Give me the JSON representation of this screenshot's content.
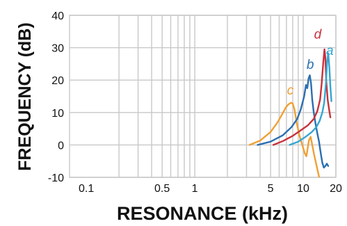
{
  "chart_data": {
    "type": "line",
    "title": "",
    "xlabel": "RESONANCE (kHz)",
    "ylabel": "FREQUENCY (dB)",
    "x_scale": "log",
    "xlim": [
      0.07,
      20
    ],
    "ylim": [
      -10,
      40
    ],
    "grid": true,
    "x_tick_labels": [
      "0.1",
      "0.5",
      "1",
      "5",
      "10",
      "20"
    ],
    "x_tick_values": [
      0.1,
      0.5,
      1,
      5,
      10,
      20
    ],
    "y_tick_labels": [
      "40",
      "30",
      "20",
      "10",
      "0",
      "-10"
    ],
    "y_tick_values": [
      40,
      30,
      20,
      10,
      0,
      -10
    ],
    "x_grid_values": [
      0.2,
      0.3,
      0.4,
      0.5,
      0.6,
      0.7,
      0.8,
      0.9,
      1,
      2,
      3,
      4,
      5,
      6,
      7,
      8,
      9,
      10,
      20
    ],
    "series": [
      {
        "name": "c",
        "color": "#f0a035",
        "x": [
          3.2,
          4.0,
          5.0,
          5.8,
          6.4,
          6.9,
          7.3,
          7.7,
          8.0,
          8.3,
          8.7,
          9.2,
          9.8,
          10.3,
          10.7,
          11.0,
          11.3,
          11.7,
          12.1,
          12.6,
          13.1,
          13.6,
          14.0
        ],
        "y": [
          0,
          1.3,
          4,
          7,
          9.5,
          11.5,
          12.5,
          13,
          12.8,
          11,
          7,
          3,
          0,
          -2.5,
          -3.5,
          -1,
          1.5,
          2.5,
          0,
          -3,
          -5.5,
          -8,
          -9.8
        ]
      },
      {
        "name": "b",
        "color": "#2b6fb0",
        "x": [
          3.8,
          5.0,
          6.5,
          7.8,
          8.8,
          9.5,
          10.2,
          10.6,
          10.9,
          11.2,
          11.5,
          11.8,
          12.1,
          12.5,
          13.0,
          13.5,
          14.0,
          14.5,
          15.0,
          15.5,
          16.0,
          16.5,
          17.0
        ],
        "y": [
          0,
          1,
          3,
          5.5,
          8,
          11,
          15,
          18.5,
          17.5,
          20.5,
          21.5,
          19,
          14,
          10,
          6.5,
          3.5,
          1,
          -2.5,
          -5.5,
          -7,
          -6.5,
          -5.8,
          -6.5
        ]
      },
      {
        "name": "d",
        "color": "#c8323c",
        "x": [
          5.3,
          6.5,
          8.0,
          9.5,
          11.0,
          12.5,
          13.5,
          14.3,
          14.8,
          15.3,
          15.7,
          16.0,
          16.3,
          16.8,
          17.3,
          17.8
        ],
        "y": [
          0,
          1.2,
          2.8,
          4.5,
          6,
          8,
          10.5,
          14,
          19,
          25.5,
          29.5,
          27,
          20,
          14,
          11,
          8.5
        ]
      },
      {
        "name": "a",
        "color": "#35a6d2",
        "x": [
          7.5,
          9.0,
          10.5,
          12.0,
          13.2,
          14.2,
          15.0,
          15.6,
          16.2,
          16.6,
          17.0,
          17.4,
          17.8,
          18.2
        ],
        "y": [
          0,
          1,
          2.5,
          4,
          5.5,
          7.5,
          10,
          13,
          19,
          25.5,
          28.3,
          24,
          18,
          13.5
        ]
      }
    ],
    "curve_labels": [
      {
        "text": "c",
        "x": 7.6,
        "y": 15.5
      },
      {
        "text": "b",
        "x": 11.6,
        "y": 23.5
      },
      {
        "text": "d",
        "x": 13.6,
        "y": 32.8
      },
      {
        "text": "a",
        "x": 17.6,
        "y": 27.8
      }
    ]
  }
}
